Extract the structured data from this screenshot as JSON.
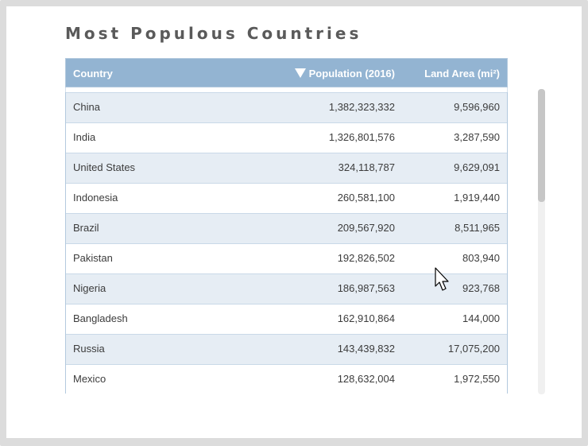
{
  "title": "Most Populous Countries",
  "table": {
    "headers": {
      "country": "Country",
      "population": "Population (2016)",
      "land_area": "Land Area (mi²)",
      "sort_icon": "sort-descending-icon"
    },
    "rows": [
      {
        "country": "China",
        "population": "1,382,323,332",
        "land_area": "9,596,960"
      },
      {
        "country": "India",
        "population": "1,326,801,576",
        "land_area": "3,287,590"
      },
      {
        "country": "United States",
        "population": "324,118,787",
        "land_area": "9,629,091"
      },
      {
        "country": "Indonesia",
        "population": "260,581,100",
        "land_area": "1,919,440"
      },
      {
        "country": "Brazil",
        "population": "209,567,920",
        "land_area": "8,511,965"
      },
      {
        "country": "Pakistan",
        "population": "192,826,502",
        "land_area": "803,940"
      },
      {
        "country": "Nigeria",
        "population": "186,987,563",
        "land_area": "923,768"
      },
      {
        "country": "Bangladesh",
        "population": "162,910,864",
        "land_area": "144,000"
      },
      {
        "country": "Russia",
        "population": "143,439,832",
        "land_area": "17,075,200"
      },
      {
        "country": "Mexico",
        "population": "128,632,004",
        "land_area": "1,972,550"
      }
    ]
  },
  "colors": {
    "header_bg": "#93b4d2",
    "row_alt_bg": "#e6edf4",
    "title_text": "#5a5a5a"
  }
}
